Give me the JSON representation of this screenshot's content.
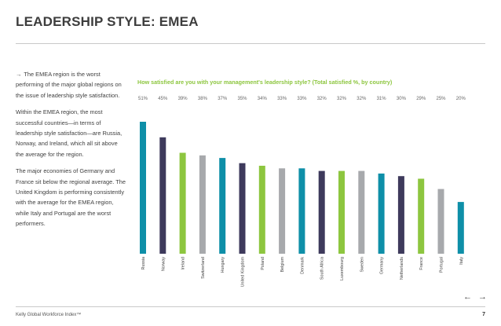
{
  "page": {
    "title": "LEADERSHIP STYLE: EMEA",
    "footer": "Kelly Global Workforce Index™",
    "page_number": "7",
    "nav": {
      "prev": "←",
      "next": "→"
    }
  },
  "left_text": {
    "intro_arrow": "→",
    "intro": "The EMEA region is the worst performing of the major global regions on the issue of leadership style satisfaction.",
    "para2": "Within the EMEA region, the most successful countries—in terms of leadership style satisfaction—are Russia, Norway, and Ireland, which all sit above the average for the region.",
    "para3": "The major economies of Germany and France sit below the regional average. The United Kingdom is performing consistently with the average for the EMEA region, while Italy and Portugal are the worst performers."
  },
  "colors": {
    "teal": "#0e8fa8",
    "purple": "#3e3a5c",
    "green": "#8dc63f",
    "gray": "#a7a9ac"
  },
  "chart_data": {
    "type": "bar",
    "title": "How satisfied are you with your management's leadership style? (Total satisfied %, by country)",
    "categories": [
      "Russia",
      "Norway",
      "Ireland",
      "Switzerland",
      "Hungary",
      "United Kingdom",
      "Poland",
      "Belgium",
      "Denmark",
      "South Africa",
      "Luxembourg",
      "Sweden",
      "Germany",
      "Netherlands",
      "France",
      "Portugal",
      "Italy"
    ],
    "values": [
      51,
      45,
      39,
      38,
      37,
      35,
      34,
      33,
      33,
      32,
      32,
      32,
      31,
      30,
      29,
      25,
      20
    ],
    "value_labels": [
      "51%",
      "45%",
      "39%",
      "38%",
      "37%",
      "35%",
      "34%",
      "33%",
      "33%",
      "32%",
      "32%",
      "32%",
      "31%",
      "30%",
      "29%",
      "25%",
      "20%"
    ],
    "bar_colors": [
      "teal",
      "purple",
      "green",
      "gray",
      "teal",
      "purple",
      "green",
      "gray",
      "teal",
      "purple",
      "green",
      "gray",
      "teal",
      "purple",
      "green",
      "gray",
      "teal"
    ],
    "xlabel": "",
    "ylabel": "",
    "ylim": [
      0,
      56
    ]
  }
}
